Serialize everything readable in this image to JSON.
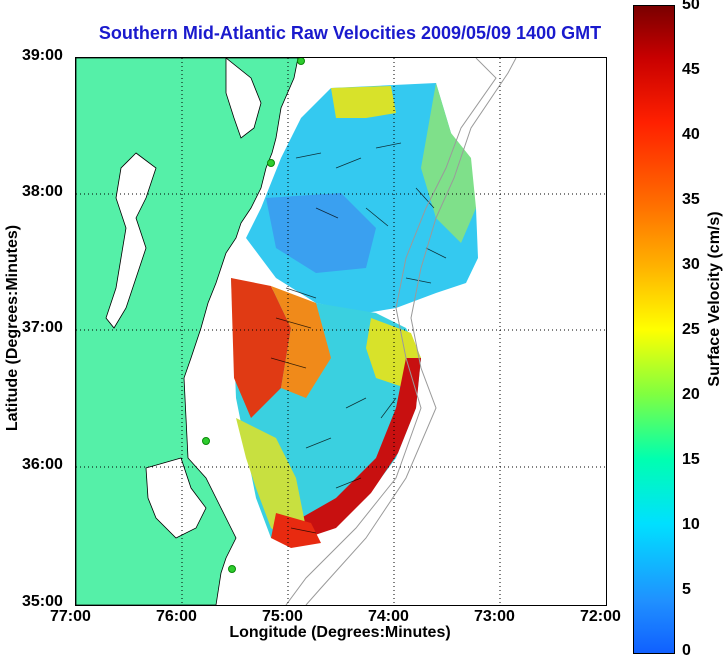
{
  "title": "Southern Mid-Atlantic Raw Velocities 2009/05/09 1400 GMT",
  "x_axis": {
    "label": "Longitude (Degrees:Minutes)",
    "ticks": [
      "77:00",
      "76:00",
      "75:00",
      "74:00",
      "73:00",
      "72:00"
    ]
  },
  "y_axis": {
    "label": "Latitude (Degrees:Minutes)",
    "ticks": [
      "39:00",
      "38:00",
      "37:00",
      "36:00",
      "35:00"
    ]
  },
  "colorbar": {
    "label": "Surface Velocity (cm/s)",
    "ticks": [
      "50",
      "45",
      "40",
      "35",
      "30",
      "25",
      "20",
      "15",
      "10",
      "5",
      "0"
    ],
    "min": 0,
    "max": 50
  },
  "colors": {
    "title": "#1a1acd",
    "land": "#55f0a8",
    "coast_outline": "#000000",
    "station_marker": "#2ecc2e"
  },
  "map": {
    "lon_range": [
      -77,
      -72
    ],
    "lat_range": [
      35,
      39
    ],
    "grid": true
  }
}
